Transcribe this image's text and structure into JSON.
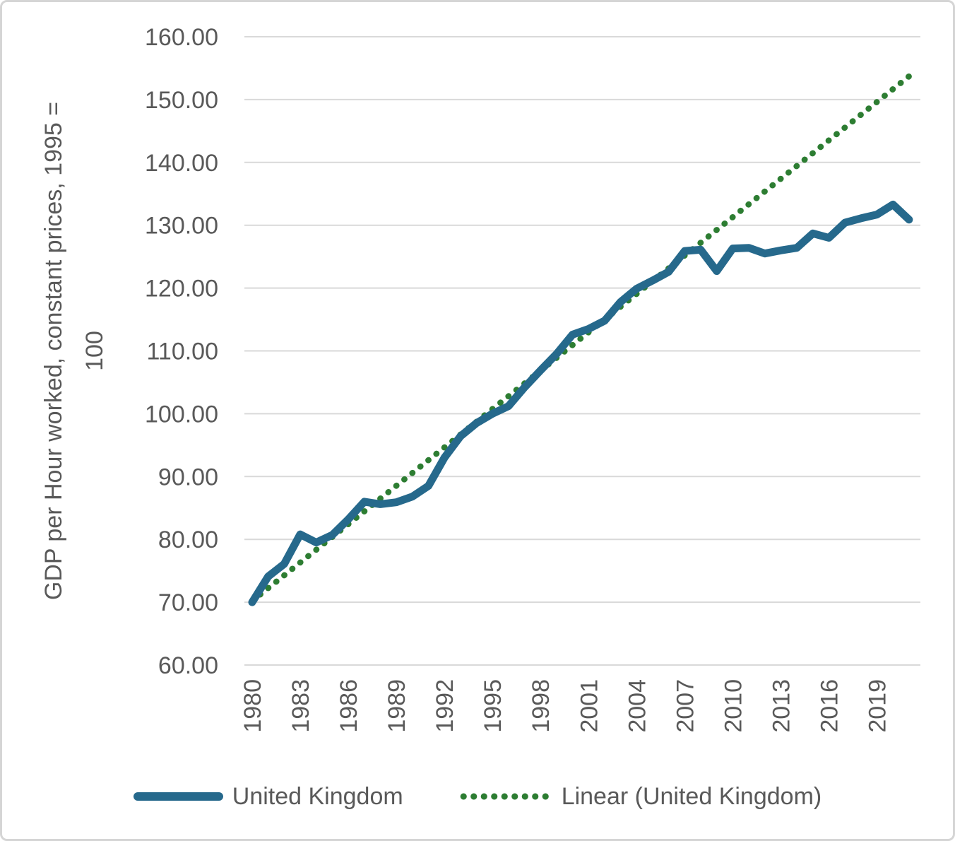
{
  "chart_data": {
    "type": "line",
    "title": "",
    "y_axis": {
      "label_line1": "GDP per Hour worked, constant prices, 1995 =",
      "label_line2": "100",
      "min": 60,
      "max": 160,
      "tick_step": 10,
      "tick_values": [
        160,
        150,
        140,
        130,
        120,
        110,
        100,
        90,
        80,
        70,
        60
      ],
      "tick_labels": [
        "160.00",
        "150.00",
        "140.00",
        "130.00",
        "120.00",
        "110.00",
        "100.00",
        "90.00",
        "80.00",
        "70.00",
        "60.00"
      ]
    },
    "x_axis": {
      "year_start": 1980,
      "year_end": 2021,
      "tick_every": 3,
      "tick_labels": [
        "1980",
        "1983",
        "1986",
        "1989",
        "1992",
        "1995",
        "1998",
        "2001",
        "2004",
        "2007",
        "2010",
        "2013",
        "2016",
        "2019"
      ]
    },
    "series": [
      {
        "name": "United Kingdom",
        "color": "#26698C",
        "style": "solid",
        "years": [
          1980,
          1981,
          1982,
          1983,
          1984,
          1985,
          1986,
          1987,
          1988,
          1989,
          1990,
          1991,
          1992,
          1993,
          1994,
          1995,
          1996,
          1997,
          1998,
          1999,
          2000,
          2001,
          2002,
          2003,
          2004,
          2005,
          2006,
          2007,
          2008,
          2009,
          2010,
          2011,
          2012,
          2013,
          2014,
          2015,
          2016,
          2017,
          2018,
          2019,
          2020,
          2021
        ],
        "values": [
          70.0,
          74.1,
          76.1,
          80.8,
          79.5,
          80.7,
          83.2,
          86.0,
          85.6,
          85.9,
          86.8,
          88.5,
          93.0,
          96.4,
          98.5,
          100.0,
          101.2,
          104.2,
          106.9,
          109.5,
          112.6,
          113.5,
          114.8,
          117.8,
          119.9,
          121.2,
          122.6,
          125.9,
          126.1,
          122.7,
          126.3,
          126.4,
          125.5,
          126.0,
          126.4,
          128.7,
          128.0,
          130.4,
          131.1,
          131.7,
          133.3,
          130.9
        ]
      },
      {
        "name": "Linear (United Kingdom)",
        "color": "#2D7D32",
        "style": "dotted",
        "trend": {
          "x_start": 1980,
          "y_start": 70.2,
          "x_end": 2021,
          "y_end": 153.7
        }
      }
    ],
    "colors": {
      "gridline": "#D9D9D9",
      "text": "#595959",
      "background": "#FFFFFF",
      "border": "#D5D5D5"
    },
    "legend": {
      "position": "bottom",
      "items": [
        {
          "label": "United Kingdom"
        },
        {
          "label": "Linear (United Kingdom)"
        }
      ]
    },
    "grid": "horizontal-only"
  }
}
